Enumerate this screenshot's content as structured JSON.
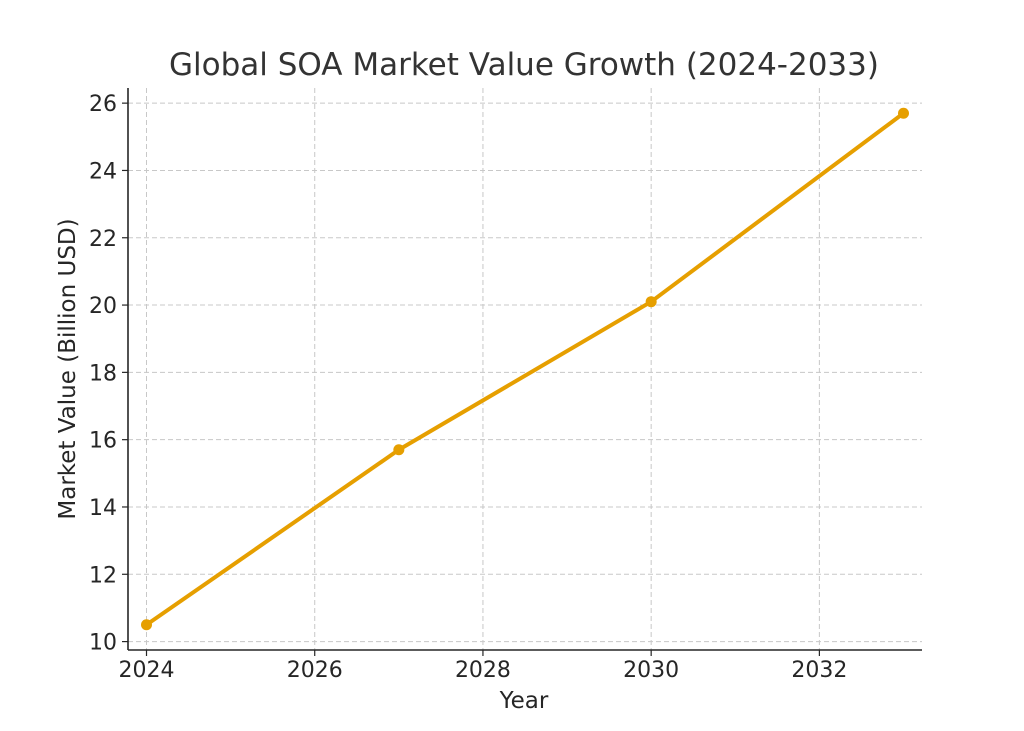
{
  "chart_data": {
    "type": "line",
    "title": "Global SOA Market Value Growth (2024-2033)",
    "xlabel": "Year",
    "ylabel": "Market Value (Billion USD)",
    "x": [
      2024,
      2027,
      2030,
      2033
    ],
    "series": [
      {
        "values": [
          10.5,
          15.7,
          20.1,
          25.7
        ]
      }
    ],
    "xlim": [
      2023.78,
      2033.22
    ],
    "ylim": [
      9.75,
      26.45
    ],
    "xticks": [
      2024,
      2026,
      2028,
      2030,
      2032
    ],
    "yticks": [
      10,
      12,
      14,
      16,
      18,
      20,
      22,
      24,
      26
    ],
    "grid": true,
    "line_color": "#E69F00",
    "marker": "circle"
  }
}
